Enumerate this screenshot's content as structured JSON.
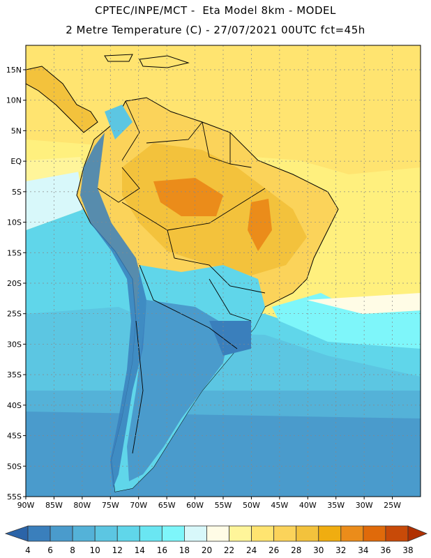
{
  "header": {
    "line1": "CPTEC/INPE/MCT -  Eta Model 8km - MODEL",
    "line2": "2 Metre Temperature (C) - 27/07/2021 00UTC fct=45h"
  },
  "map": {
    "lon_range": [
      -90,
      -20
    ],
    "lat_range": [
      -55,
      19
    ],
    "x_ticks": [
      {
        "lon": -90,
        "label": "90W"
      },
      {
        "lon": -85,
        "label": "85W"
      },
      {
        "lon": -80,
        "label": "80W"
      },
      {
        "lon": -75,
        "label": "75W"
      },
      {
        "lon": -70,
        "label": "70W"
      },
      {
        "lon": -65,
        "label": "65W"
      },
      {
        "lon": -60,
        "label": "60W"
      },
      {
        "lon": -55,
        "label": "55W"
      },
      {
        "lon": -50,
        "label": "50W"
      },
      {
        "lon": -45,
        "label": "45W"
      },
      {
        "lon": -40,
        "label": "40W"
      },
      {
        "lon": -35,
        "label": "35W"
      },
      {
        "lon": -30,
        "label": "30W"
      },
      {
        "lon": -25,
        "label": "25W"
      }
    ],
    "y_ticks": [
      {
        "lat": 15,
        "label": "15N"
      },
      {
        "lat": 10,
        "label": "10N"
      },
      {
        "lat": 5,
        "label": "5N"
      },
      {
        "lat": 0,
        "label": "EQ"
      },
      {
        "lat": -5,
        "label": "5S"
      },
      {
        "lat": -10,
        "label": "10S"
      },
      {
        "lat": -15,
        "label": "15S"
      },
      {
        "lat": -20,
        "label": "20S"
      },
      {
        "lat": -25,
        "label": "25S"
      },
      {
        "lat": -30,
        "label": "30S"
      },
      {
        "lat": -35,
        "label": "35S"
      },
      {
        "lat": -40,
        "label": "40S"
      },
      {
        "lat": -45,
        "label": "45S"
      },
      {
        "lat": -50,
        "label": "50S"
      },
      {
        "lat": -55,
        "label": "55S"
      }
    ],
    "grid": true
  },
  "colorbar": {
    "labels": [
      "4",
      "6",
      "8",
      "10",
      "12",
      "14",
      "16",
      "18",
      "20",
      "22",
      "24",
      "26",
      "28",
      "30",
      "32",
      "34",
      "36",
      "38"
    ],
    "colors": [
      "#2b64a8",
      "#3a7fbc",
      "#4a9bcc",
      "#54b2d8",
      "#5cc6e2",
      "#60d6ea",
      "#6ae6f2",
      "#7ef6fa",
      "#d8f8fa",
      "#fffce6",
      "#fff59a",
      "#ffe470",
      "#fbd35a",
      "#f3c23c",
      "#f0ad10",
      "#eb8c1a",
      "#e06a0a",
      "#c84a08",
      "#b03000"
    ]
  }
}
